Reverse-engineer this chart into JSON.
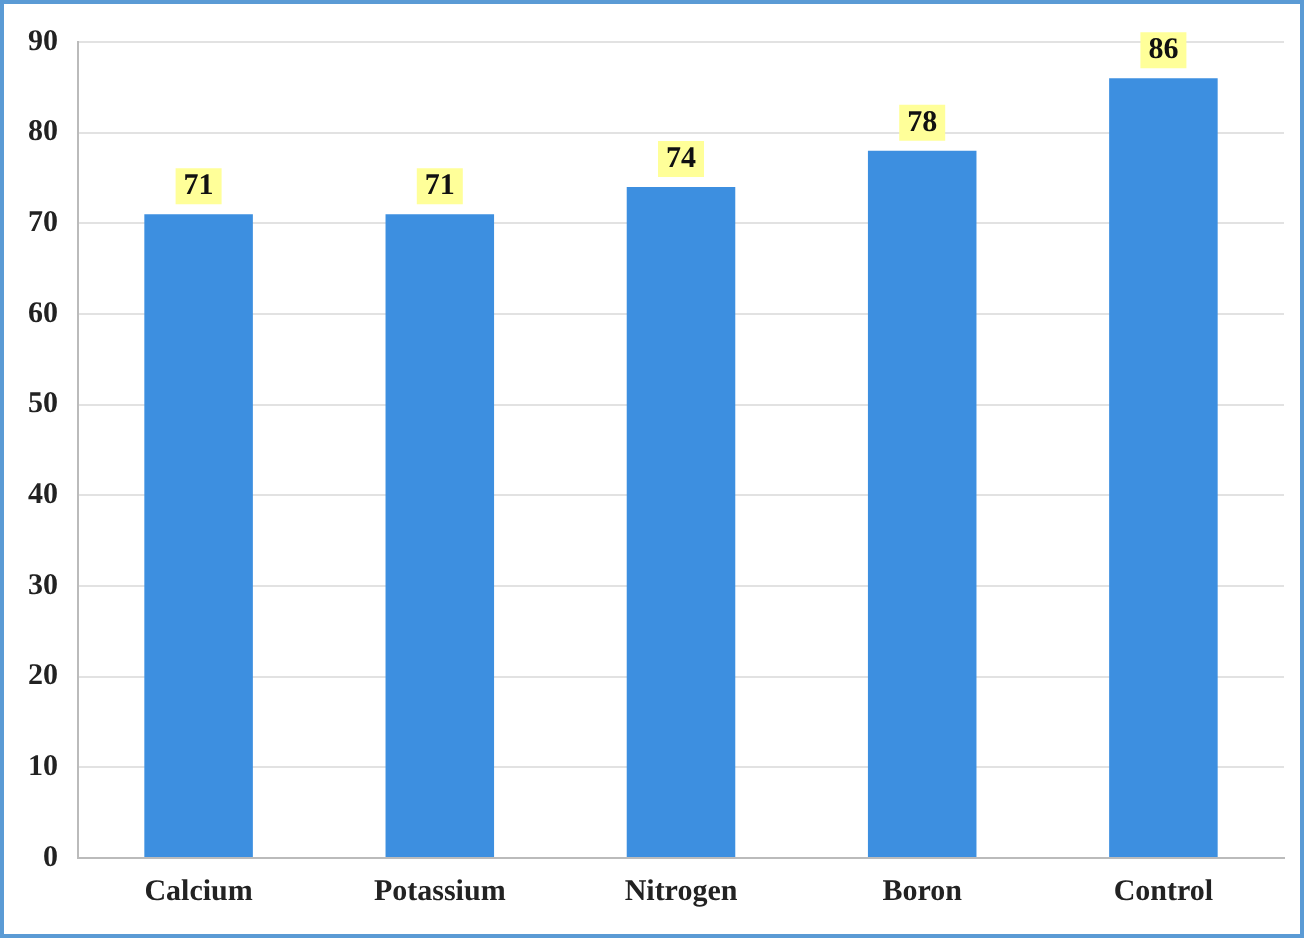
{
  "chart_data": {
    "type": "bar",
    "categories": [
      "Calcium",
      "Potassium",
      "Nitrogen",
      "Boron",
      "Control"
    ],
    "values": [
      71,
      71,
      74,
      78,
      86
    ],
    "color": "#3d8fe0",
    "ylim": [
      0,
      90
    ],
    "yticks": [
      0,
      10,
      20,
      30,
      40,
      50,
      60,
      70,
      80,
      90
    ],
    "grid": "y",
    "data_labels": true
  }
}
